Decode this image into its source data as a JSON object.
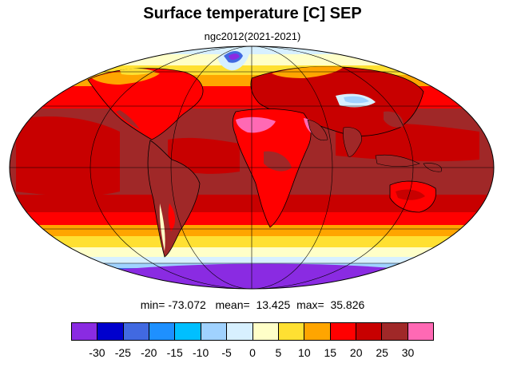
{
  "title": "Surface temperature [C] SEP",
  "subtitle": "ngc2012(2021-2021)",
  "stats": {
    "min_label": "min=",
    "min": "-73.072",
    "mean_label": "mean=",
    "mean": "13.425",
    "max_label": "max=",
    "max": "35.826"
  },
  "colorbar": {
    "colors": [
      "#8a2be2",
      "#0000cd",
      "#4169e1",
      "#1e90ff",
      "#00bfff",
      "#a0d2ff",
      "#d7f0ff",
      "#ffffc8",
      "#ffe032",
      "#ffa500",
      "#ff0000",
      "#c80000",
      "#a02828",
      "#ff69b4"
    ],
    "labels": [
      "-30",
      "-25",
      "-20",
      "-15",
      "-10",
      "-5",
      "0",
      "5",
      "10",
      "15",
      "20",
      "25",
      "30"
    ]
  }
}
